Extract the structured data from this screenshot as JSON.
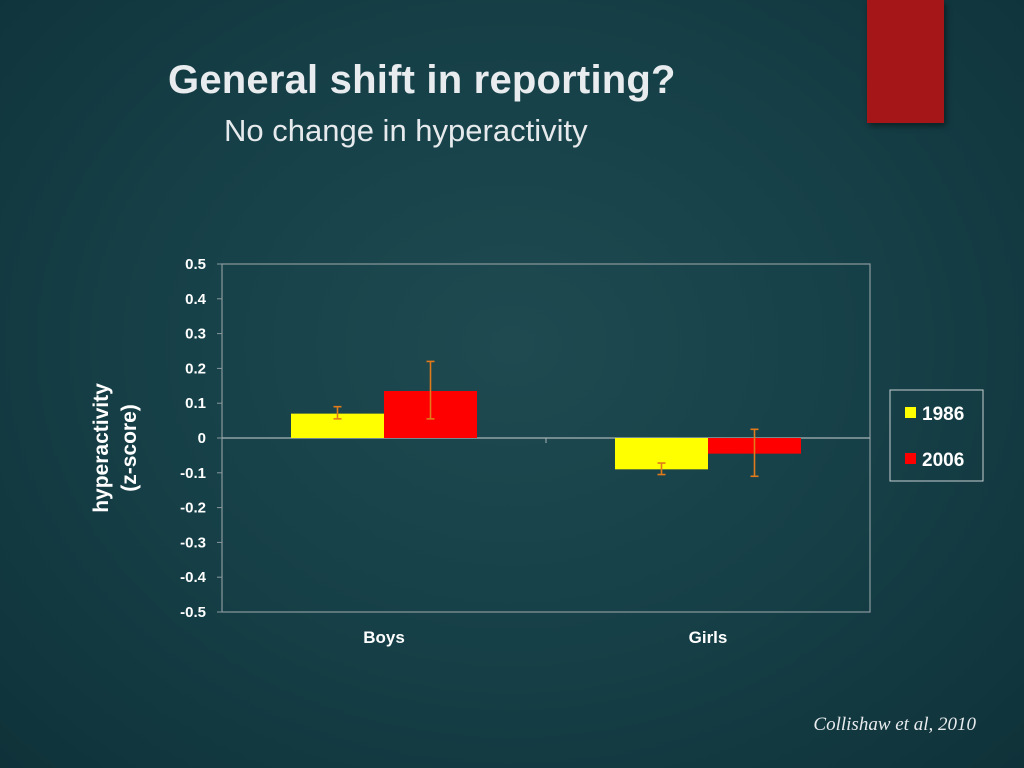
{
  "slide": {
    "title": "General shift in reporting?",
    "subtitle": "No change in hyperactivity",
    "citation": "Collishaw et al, 2010",
    "accent_color": "#a51618"
  },
  "chart_data": {
    "type": "bar",
    "categories": [
      "Boys",
      "Girls"
    ],
    "series": [
      {
        "name": "1986",
        "color": "#ffff00",
        "values": [
          0.07,
          -0.09
        ],
        "error_low": [
          0.055,
          -0.105
        ],
        "error_high": [
          0.09,
          -0.072
        ]
      },
      {
        "name": "2006",
        "color": "#ff0000",
        "values": [
          0.135,
          -0.045
        ],
        "error_low": [
          0.055,
          -0.11
        ],
        "error_high": [
          0.22,
          0.025
        ]
      }
    ],
    "ylabel_lines": [
      "hyperactivity",
      "(z-score)"
    ],
    "xlabel": "",
    "ylim": [
      -0.5,
      0.5
    ],
    "yticks": [
      0.5,
      0.4,
      0.3,
      0.2,
      0.1,
      0,
      -0.1,
      -0.2,
      -0.3,
      -0.4,
      -0.5
    ],
    "ytick_labels": [
      "0.5",
      "0.4",
      "0.3",
      "0.2",
      "0.1",
      "0",
      "-0.1",
      "-0.2",
      "-0.3",
      "-0.4",
      "-0.5"
    ],
    "error_bar_color": "#e07a1a",
    "legend_position": "right",
    "grid": false
  }
}
